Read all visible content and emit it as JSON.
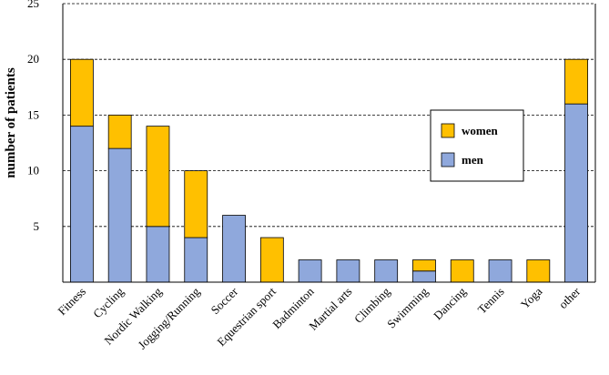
{
  "chart_data": {
    "type": "bar",
    "stacked": true,
    "title": "",
    "xlabel": "",
    "ylabel": "number of patients",
    "ylim": [
      0,
      25
    ],
    "yticks": [
      5,
      10,
      15,
      20,
      25
    ],
    "grid": true,
    "legend_position": "right",
    "categories": [
      "Fitness",
      "Cycling",
      "Nordic Walking",
      "Jogging/Running",
      "Soccer",
      "Equestrian sport",
      "Badminton",
      "Martial arts",
      "Climbing",
      "Swimming",
      "Dancing",
      "Tennis",
      "Yoga",
      "other"
    ],
    "series": [
      {
        "name": "men",
        "color": "#8fa8dc",
        "values": [
          14,
          12,
          5,
          4,
          6,
          0,
          2,
          2,
          2,
          1,
          0,
          2,
          0,
          16
        ]
      },
      {
        "name": "women",
        "color": "#ffc000",
        "values": [
          6,
          3,
          9,
          6,
          0,
          4,
          0,
          0,
          0,
          1,
          2,
          0,
          2,
          4
        ]
      }
    ],
    "legend_order": [
      "women",
      "men"
    ]
  }
}
